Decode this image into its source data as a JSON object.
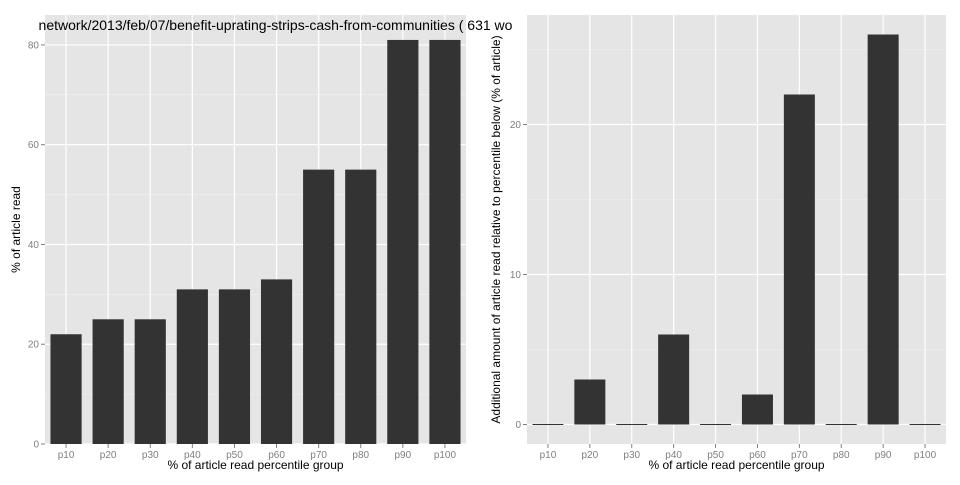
{
  "chart_data": [
    {
      "type": "bar",
      "title": "network/2013/feb/07/benefit-uprating-strips-cash-from-communities ( 631 wo",
      "xlabel": "% of article read percentile group",
      "ylabel": "% of article read",
      "categories": [
        "p10",
        "p20",
        "p30",
        "p40",
        "p50",
        "p60",
        "p70",
        "p80",
        "p90",
        "p100"
      ],
      "values": [
        22,
        25,
        25,
        31,
        31,
        33,
        55,
        55,
        81,
        81
      ],
      "ylim": [
        0,
        86
      ],
      "yticks": [
        0,
        20,
        40,
        60,
        80
      ],
      "ytick_labels": [
        "0",
        "20",
        "40",
        "60",
        "80"
      ],
      "grid": true,
      "colors": {
        "bar": "#333333",
        "panel": "#e5e5e5",
        "grid_major": "#ffffff",
        "grid_minor": "#f2f2f2"
      }
    },
    {
      "type": "bar",
      "title": "",
      "xlabel": "% of article read percentile group",
      "ylabel": "Additional amount of article read relative to percentile below (% of article)",
      "categories": [
        "p10",
        "p20",
        "p30",
        "p40",
        "p50",
        "p60",
        "p70",
        "p80",
        "p90",
        "p100"
      ],
      "values": [
        0,
        3,
        0,
        6,
        0,
        2,
        22,
        0,
        26,
        0
      ],
      "ylim": [
        -1.3,
        27.3
      ],
      "yticks": [
        0,
        10,
        20
      ],
      "ytick_labels": [
        "0",
        "10",
        "20"
      ],
      "grid": true,
      "colors": {
        "bar": "#333333",
        "panel": "#e5e5e5",
        "grid_major": "#ffffff",
        "grid_minor": "#f2f2f2"
      }
    }
  ]
}
